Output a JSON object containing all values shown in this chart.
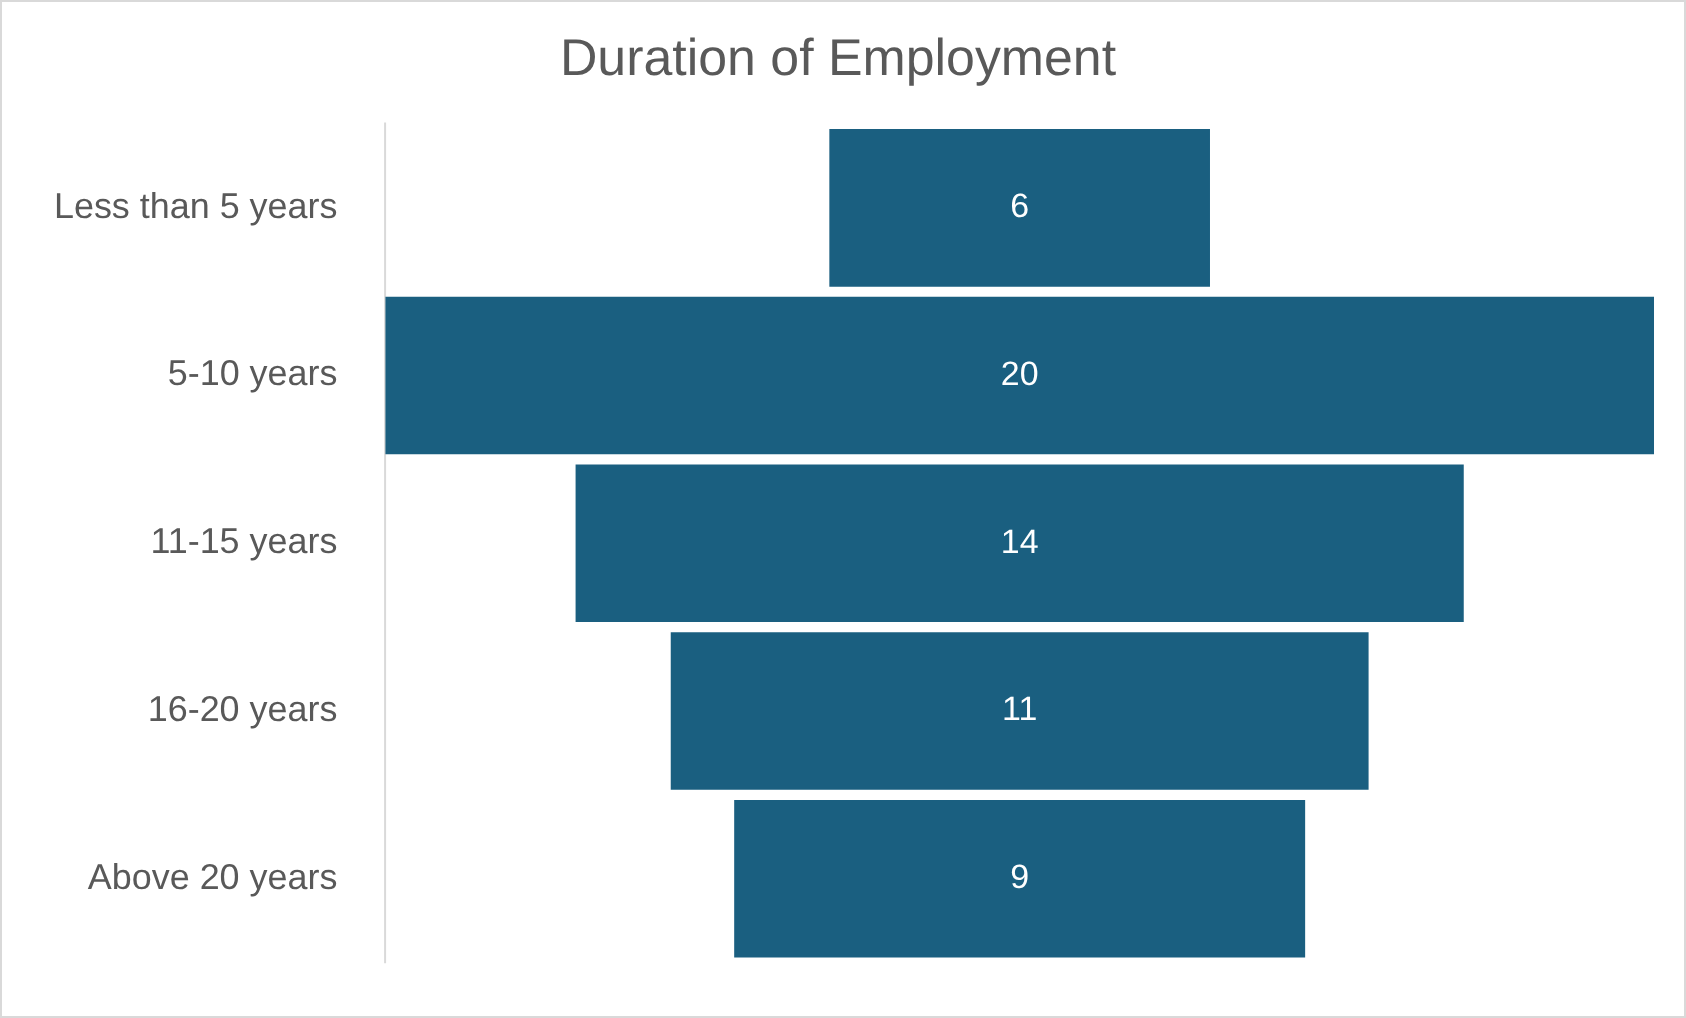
{
  "chart_data": {
    "type": "other",
    "title": "Duration of Employment",
    "categories": [
      "Less than 5 years",
      "5-10 years",
      "11-15 years",
      "16-20 years",
      "Above 20 years"
    ],
    "values": [
      6,
      20,
      14,
      11,
      9
    ],
    "color": "#1a5f80",
    "data_labels": true
  }
}
